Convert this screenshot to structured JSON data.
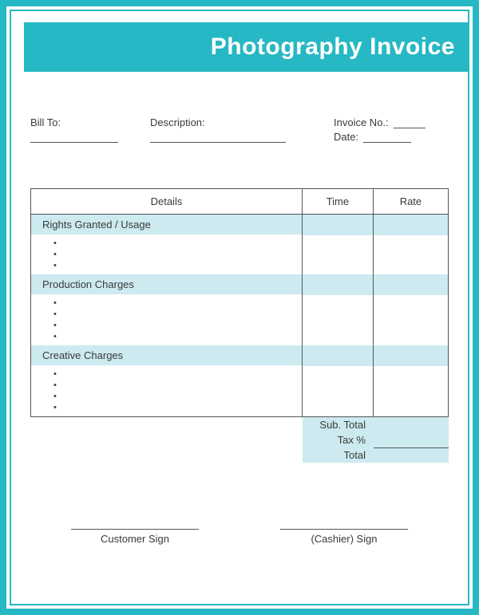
{
  "colors": {
    "accent": "#26b8c4",
    "band": "#cceaef",
    "text": "#3a3a3a",
    "line": "#555555",
    "bg": "#ffffff"
  },
  "title": "Photography Invoice",
  "meta": {
    "bill_to_label": "Bill To:",
    "description_label": "Description:",
    "invoice_no_label": "Invoice No.:",
    "date_label": "Date:"
  },
  "table": {
    "headers": {
      "details": "Details",
      "time": "Time",
      "rate": "Rate"
    },
    "sections": [
      {
        "title": "Rights Granted / Usage",
        "bullet_count": 3
      },
      {
        "title": "Production Charges",
        "bullet_count": 4
      },
      {
        "title": "Creative Charges",
        "bullet_count": 4
      }
    ]
  },
  "totals": {
    "subtotal_label": "Sub. Total",
    "tax_label": "Tax %",
    "total_label": "Total"
  },
  "signatures": {
    "customer": "Customer Sign",
    "cashier": "(Cashier) Sign"
  }
}
